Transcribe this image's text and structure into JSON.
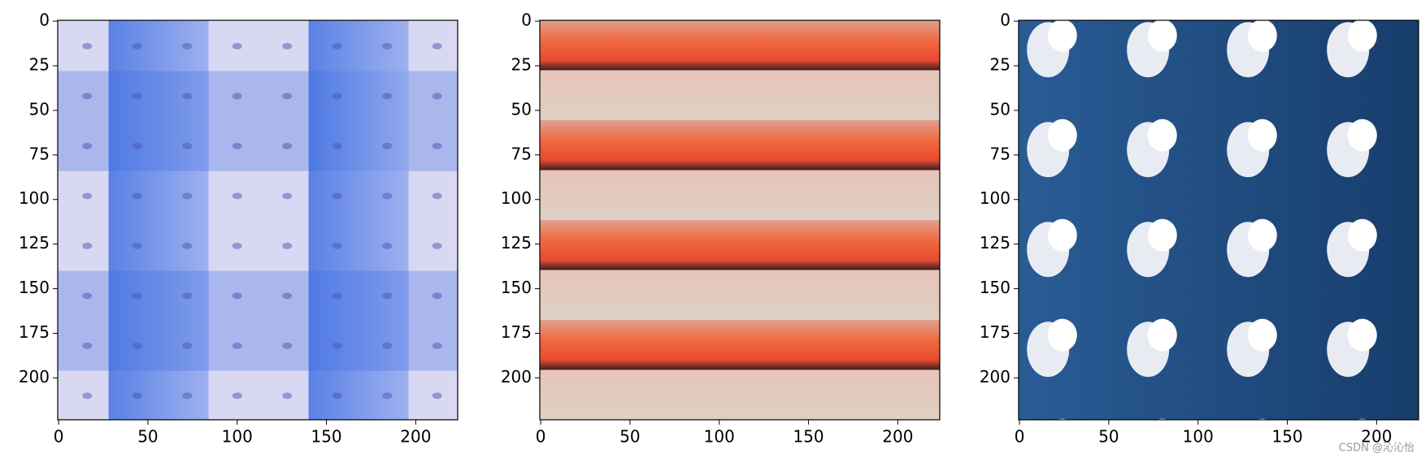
{
  "chart_data": [
    {
      "type": "image",
      "xlim": [
        -0.5,
        223.5
      ],
      "ylim": [
        223.5,
        -0.5
      ],
      "xticks": [
        0,
        50,
        100,
        150,
        200
      ],
      "yticks": [
        0,
        25,
        50,
        75,
        100,
        125,
        150,
        175,
        200
      ]
    },
    {
      "type": "image",
      "xlim": [
        -0.5,
        223.5
      ],
      "ylim": [
        223.5,
        -0.5
      ],
      "xticks": [
        0,
        50,
        100,
        150,
        200
      ],
      "yticks": [
        0,
        25,
        50,
        75,
        100,
        125,
        150,
        175,
        200
      ]
    },
    {
      "type": "image",
      "xlim": [
        -0.5,
        223.5
      ],
      "ylim": [
        223.5,
        -0.5
      ],
      "xticks": [
        0,
        50,
        100,
        150,
        200
      ],
      "yticks": [
        0,
        25,
        50,
        75,
        100,
        125,
        150,
        175,
        200
      ]
    }
  ],
  "watermark": "CSDN @沁沁怡"
}
